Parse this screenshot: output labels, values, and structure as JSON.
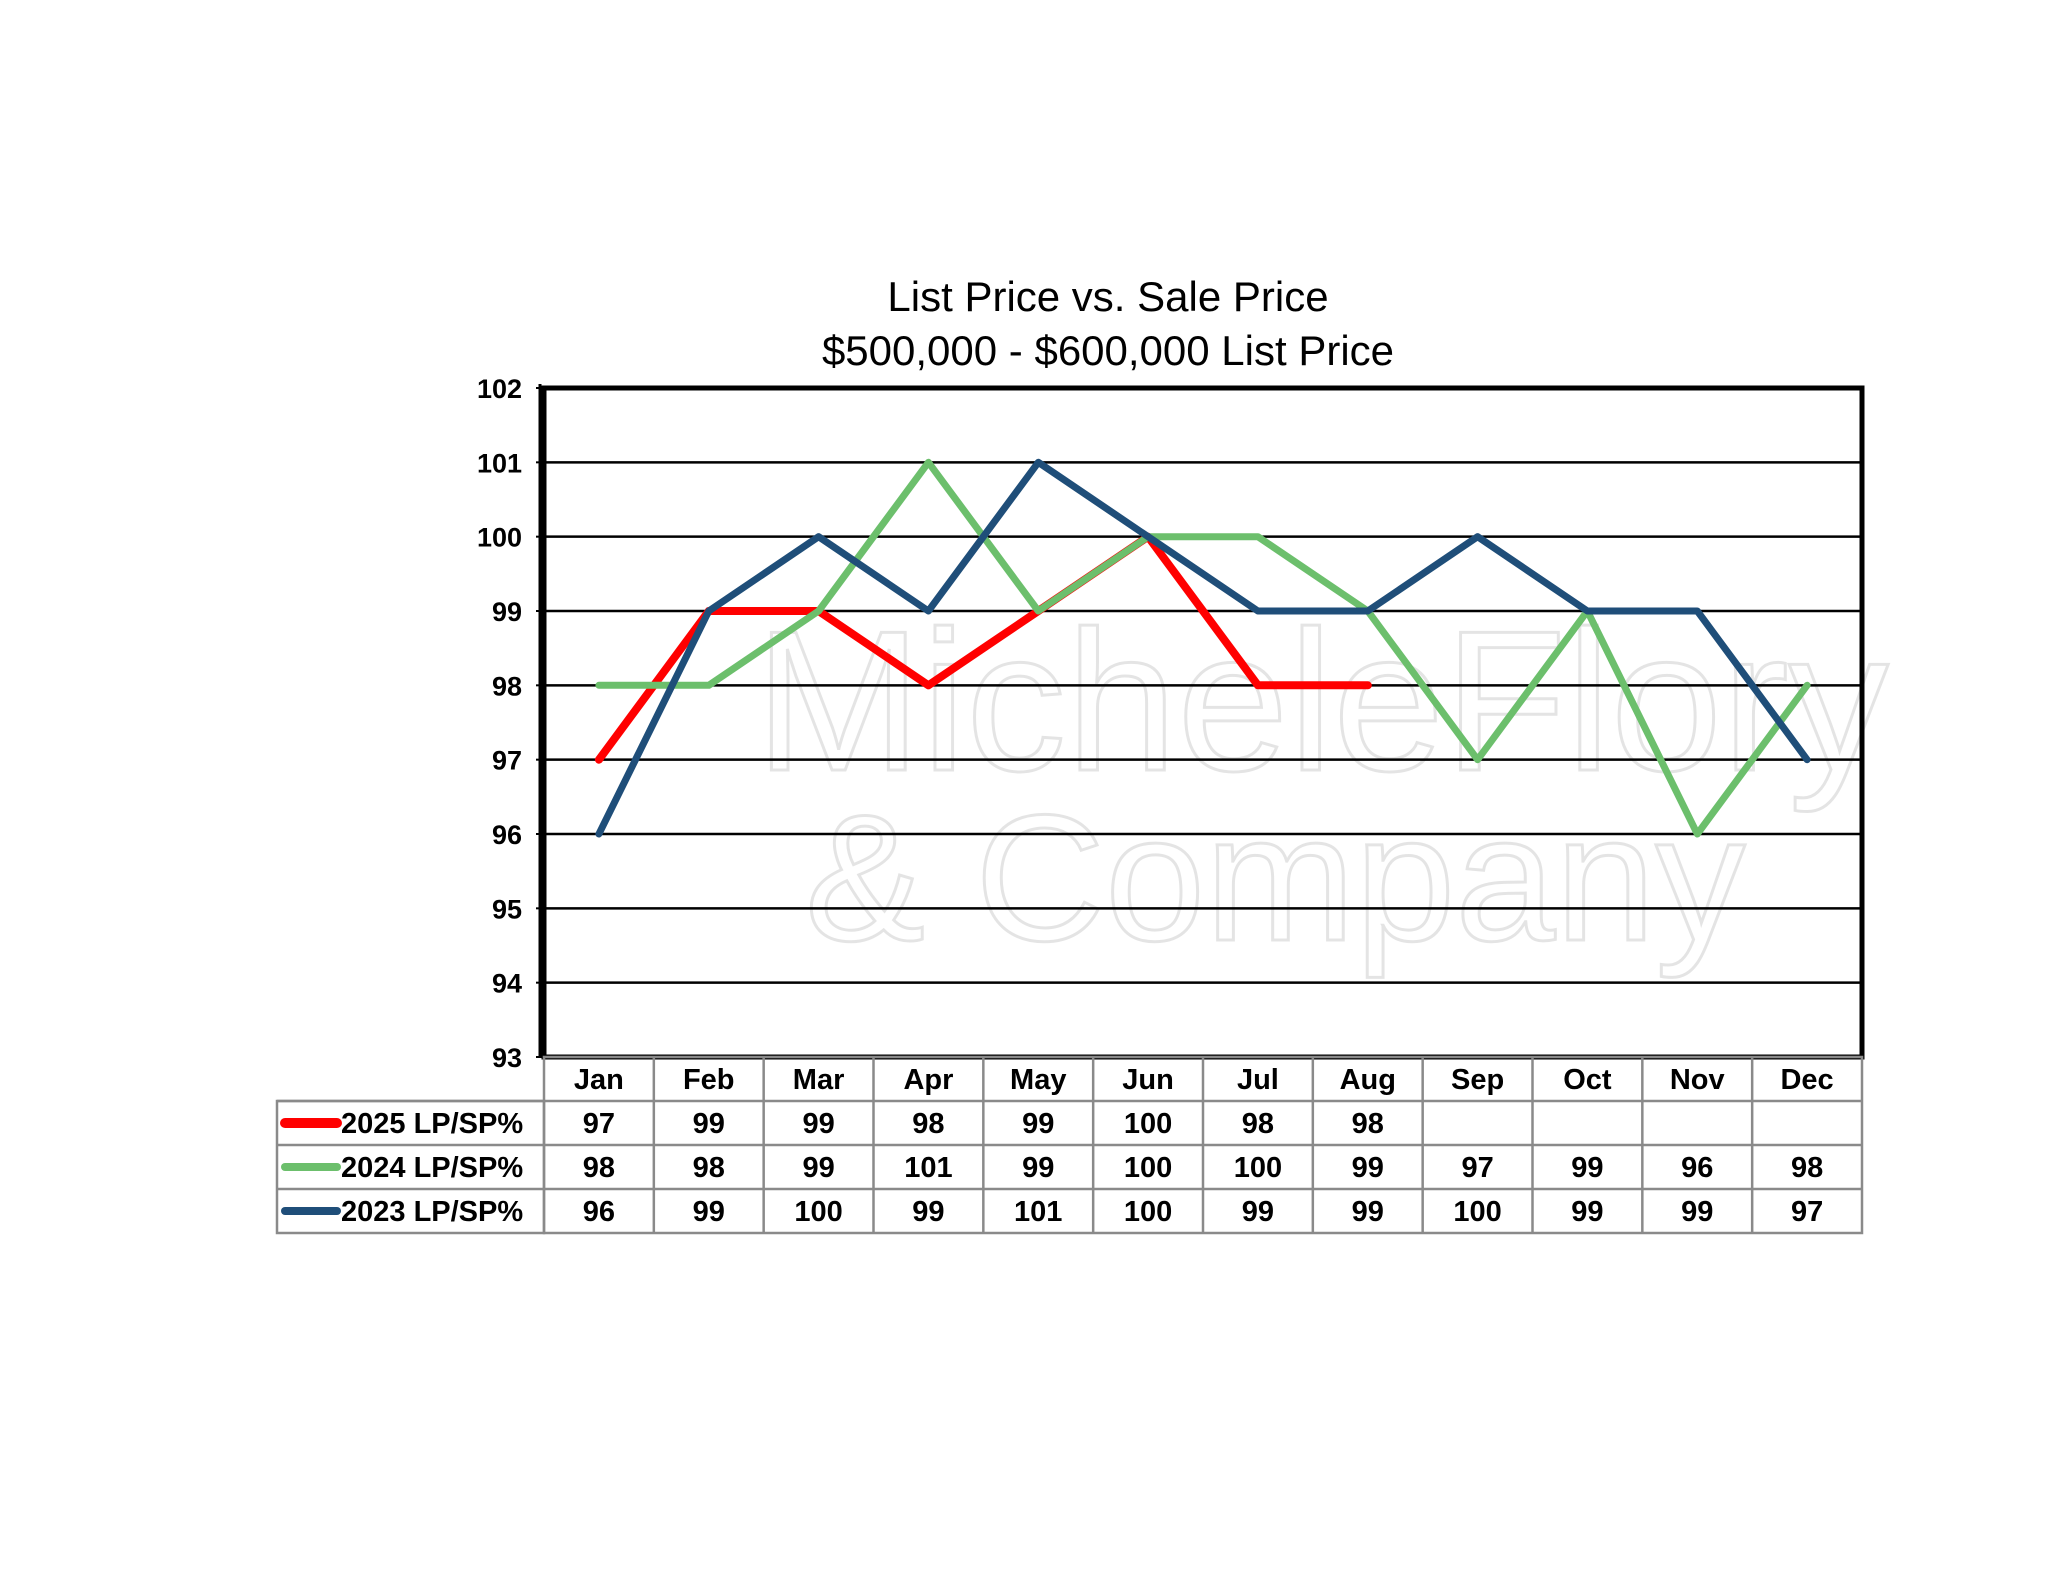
{
  "watermark": {
    "line1": "MicheleFlory",
    "line2": "& Company"
  },
  "chart_data": {
    "type": "line",
    "title": "List Price vs. Sale Price",
    "subtitle": "$500,000 - $600,000  List Price",
    "categories": [
      "Jan",
      "Feb",
      "Mar",
      "Apr",
      "May",
      "Jun",
      "Jul",
      "Aug",
      "Sep",
      "Oct",
      "Nov",
      "Dec"
    ],
    "ylim": [
      93,
      102
    ],
    "yticks": [
      93,
      94,
      95,
      96,
      97,
      98,
      99,
      100,
      101,
      102
    ],
    "grid": true,
    "legend": "data-table",
    "series": [
      {
        "name": "2025 LP/SP%",
        "color": "#ff0000",
        "values": [
          97,
          99,
          99,
          98,
          99,
          100,
          98,
          98,
          null,
          null,
          null,
          null
        ]
      },
      {
        "name": "2024 LP/SP%",
        "color": "#6cbf6c",
        "values": [
          98,
          98,
          99,
          101,
          99,
          100,
          100,
          99,
          97,
          99,
          96,
          98
        ]
      },
      {
        "name": "2023 LP/SP%",
        "color": "#1f4e79",
        "values": [
          96,
          99,
          100,
          99,
          101,
          100,
          99,
          99,
          100,
          99,
          99,
          97
        ]
      }
    ]
  }
}
